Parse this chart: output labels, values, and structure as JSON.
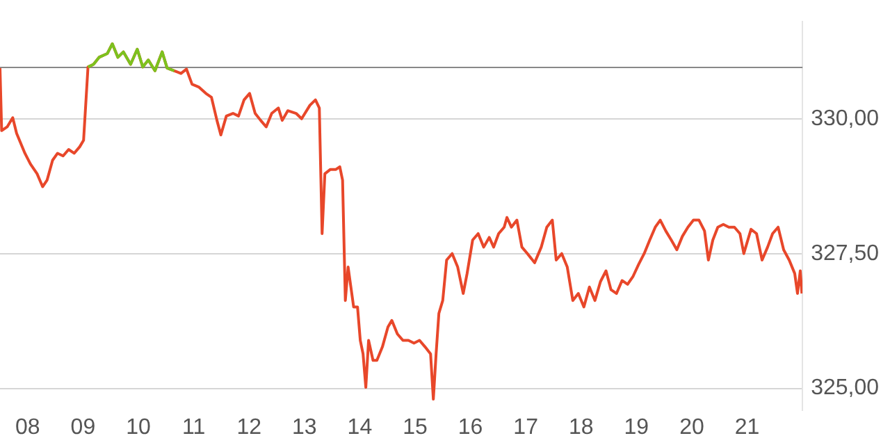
{
  "chart_data": {
    "type": "line",
    "xlim": [
      7.5,
      22.0
    ],
    "xticks": [
      {
        "value": 8,
        "label": "08"
      },
      {
        "value": 9,
        "label": "09"
      },
      10,
      11,
      12,
      13,
      14,
      15,
      16,
      17,
      18,
      19,
      20,
      21
    ],
    "ylim": [
      324.6,
      331.8
    ],
    "yticks": [
      {
        "value": 325,
        "label": "325,00"
      },
      {
        "value": 327.5,
        "label": "327,50"
      },
      {
        "value": 330,
        "label": "330,00"
      }
    ],
    "grid": "y",
    "ref_lines": [
      {
        "axis": "y",
        "value": 330.95,
        "color": "#888888"
      }
    ],
    "series": [
      {
        "color": "#e8472a",
        "x": [
          7.5,
          7.53,
          7.63,
          7.73,
          7.8,
          7.95,
          8.05,
          8.17,
          8.27,
          8.35,
          8.45,
          8.54,
          8.64,
          8.74,
          8.84,
          8.94,
          9.01,
          9.09,
          9.19,
          9.29,
          9.44,
          9.53,
          9.63,
          9.73,
          9.86,
          9.98,
          10.08,
          10.18,
          10.3,
          10.43,
          10.52,
          10.65,
          10.77,
          10.87,
          10.97,
          11.09,
          11.22,
          11.32,
          11.42,
          11.49,
          11.59,
          11.71,
          11.81,
          11.91,
          12.01,
          12.11,
          12.21,
          12.31,
          12.41,
          12.53,
          12.6,
          12.7,
          12.85,
          12.95,
          13.1,
          13.2,
          13.27,
          13.32,
          13.37,
          13.47,
          13.57,
          13.64,
          13.69,
          13.74,
          13.79,
          13.84,
          13.89,
          13.96,
          14.01,
          14.06,
          14.11,
          14.16,
          14.24,
          14.31,
          14.41,
          14.51,
          14.58,
          14.68,
          14.78,
          14.88,
          14.98,
          15.08,
          15.18,
          15.28,
          15.33,
          15.38,
          15.43,
          15.5,
          15.57,
          15.67,
          15.77,
          15.87,
          15.94,
          16.04,
          16.14,
          16.24,
          16.34,
          16.42,
          16.51,
          16.61,
          16.66,
          16.74,
          16.84,
          16.93,
          17.03,
          17.16,
          17.28,
          17.38,
          17.48,
          17.55,
          17.65,
          17.75,
          17.85,
          17.95,
          18.05,
          18.15,
          18.25,
          18.35,
          18.45,
          18.54,
          18.64,
          18.74,
          18.84,
          18.94,
          19.04,
          19.14,
          19.24,
          19.34,
          19.43,
          19.53,
          19.63,
          19.73,
          19.83,
          19.93,
          20.03,
          20.13,
          20.23,
          20.3,
          20.38,
          20.47,
          20.57,
          20.67,
          20.77,
          20.87,
          20.94,
          21.07,
          21.17,
          21.27,
          21.37,
          21.46,
          21.56,
          21.66,
          21.76,
          21.86,
          21.91,
          21.96,
          21.99
        ],
        "values": [
          330.94,
          329.78,
          329.85,
          330.02,
          329.73,
          329.36,
          329.16,
          328.98,
          328.74,
          328.86,
          329.23,
          329.36,
          329.31,
          329.43,
          329.36,
          329.48,
          329.6,
          330.96,
          331.01,
          331.14,
          331.21,
          331.39,
          331.14,
          331.24,
          331.01,
          331.29,
          330.96,
          331.09,
          330.89,
          331.24,
          330.94,
          330.89,
          330.84,
          330.92,
          330.64,
          330.59,
          330.47,
          330.4,
          329.97,
          329.7,
          330.05,
          330.1,
          330.05,
          330.35,
          330.47,
          330.1,
          329.97,
          329.85,
          330.1,
          330.2,
          329.97,
          330.15,
          330.1,
          330.0,
          330.25,
          330.35,
          330.2,
          327.87,
          328.98,
          329.06,
          329.06,
          329.11,
          328.86,
          326.63,
          327.25,
          326.88,
          326.51,
          326.51,
          325.89,
          325.64,
          325.02,
          325.89,
          325.52,
          325.52,
          325.77,
          326.14,
          326.26,
          326.01,
          325.89,
          325.89,
          325.84,
          325.89,
          325.77,
          325.64,
          324.8,
          325.64,
          326.39,
          326.63,
          327.38,
          327.5,
          327.25,
          326.76,
          327.13,
          327.75,
          327.87,
          327.62,
          327.8,
          327.62,
          327.87,
          327.99,
          328.17,
          327.99,
          328.12,
          327.62,
          327.5,
          327.33,
          327.62,
          327.99,
          328.12,
          327.38,
          327.5,
          327.25,
          326.63,
          326.76,
          326.51,
          326.88,
          326.63,
          326.98,
          327.18,
          326.83,
          326.76,
          327.0,
          326.93,
          327.08,
          327.3,
          327.5,
          327.75,
          327.99,
          328.12,
          327.92,
          327.75,
          327.57,
          327.82,
          327.99,
          328.12,
          328.12,
          327.92,
          327.38,
          327.75,
          327.99,
          328.04,
          327.99,
          327.99,
          327.87,
          327.5,
          327.95,
          327.87,
          327.38,
          327.62,
          327.87,
          327.99,
          327.57,
          327.38,
          327.13,
          326.76,
          327.18,
          326.76
        ]
      },
      {
        "color": "#7cc21e",
        "x": [
          9.09,
          9.19,
          9.29,
          9.44,
          9.53,
          9.63,
          9.73,
          9.86,
          9.98,
          10.08,
          10.18,
          10.3,
          10.43,
          10.52,
          10.65
        ],
        "values": [
          330.96,
          331.01,
          331.14,
          331.21,
          331.39,
          331.14,
          331.24,
          331.01,
          331.29,
          330.96,
          331.09,
          330.89,
          331.24,
          330.94,
          330.89
        ]
      }
    ]
  }
}
